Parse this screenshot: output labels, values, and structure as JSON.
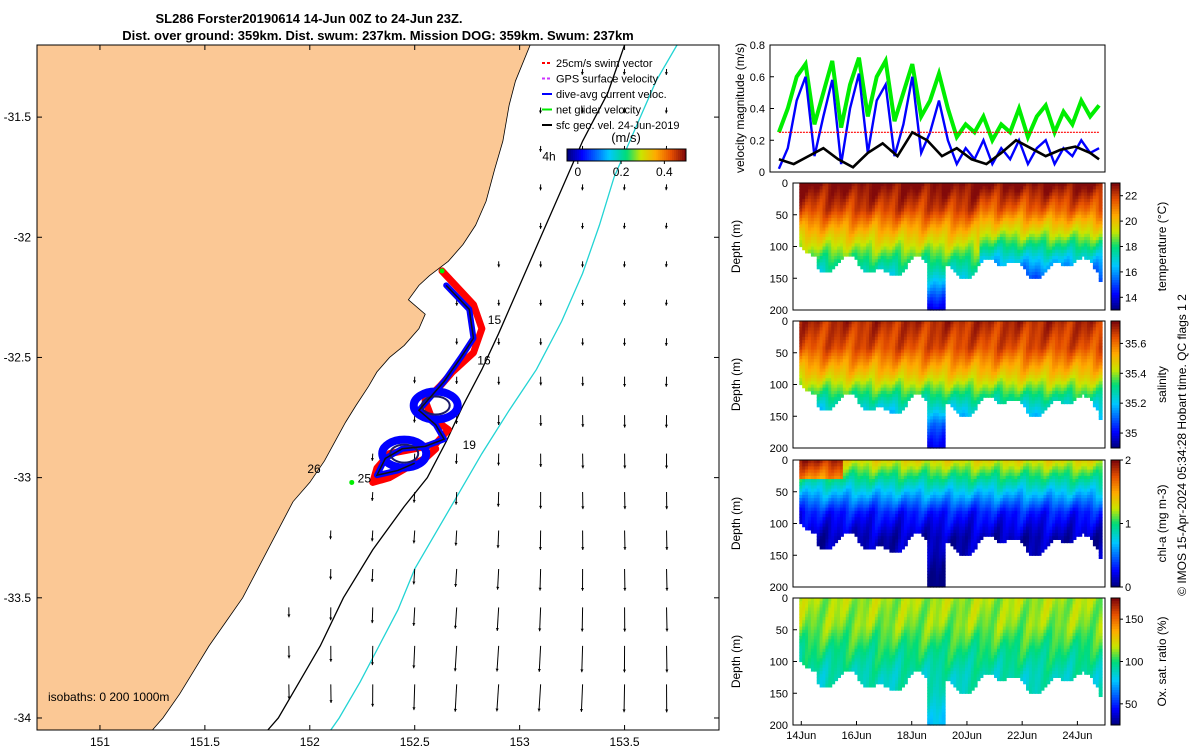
{
  "colors": {
    "land": "#fbc895",
    "swim": "#ff0000",
    "gps": "#cc33ff",
    "dive_avg": "#0000ff",
    "net_glider": "#00ee00",
    "sfc_geo": "#000000",
    "isobath_200": "#000000",
    "isobath_1000": "#22d4d4",
    "track_red": "#ff0000",
    "track_blue": "#0000ff"
  },
  "chart_data": [
    {
      "id": "map",
      "type": "scatter",
      "title_line1": "SL286 Forster20190614 14-Jun 00Z to 24-Jun 23Z.",
      "title_line2": "Dist. over ground: 359km. Dist. swum: 237km. Mission DOG: 359km. Swum: 237km",
      "xlim": [
        150.7,
        153.95
      ],
      "ylim": [
        -34.05,
        -31.2
      ],
      "xticks": [
        151,
        151.5,
        152,
        152.5,
        153,
        153.5
      ],
      "xtick_labels": [
        "151",
        "151.5",
        "152",
        "152.5",
        "153",
        "153.5"
      ],
      "yticks": [
        -31.5,
        -32,
        -32.5,
        -33,
        -33.5,
        -34
      ],
      "ytick_labels": [
        "-31.5",
        "-32",
        "-32.5",
        "-33",
        "-33.5",
        "-34"
      ],
      "coast": [
        [
          153.05,
          -31.2
        ],
        [
          152.98,
          -31.35
        ],
        [
          152.95,
          -31.45
        ],
        [
          152.92,
          -31.6
        ],
        [
          152.88,
          -31.72
        ],
        [
          152.84,
          -31.85
        ],
        [
          152.79,
          -31.95
        ],
        [
          152.73,
          -32.03
        ],
        [
          152.66,
          -32.1
        ],
        [
          152.57,
          -32.16
        ],
        [
          152.52,
          -32.2
        ],
        [
          152.47,
          -32.26
        ],
        [
          152.55,
          -32.32
        ],
        [
          152.52,
          -32.38
        ],
        [
          152.45,
          -32.45
        ],
        [
          152.38,
          -32.5
        ],
        [
          152.32,
          -32.56
        ],
        [
          152.28,
          -32.62
        ],
        [
          152.22,
          -32.7
        ],
        [
          152.17,
          -32.77
        ],
        [
          152.12,
          -32.85
        ],
        [
          152.07,
          -32.93
        ],
        [
          152.0,
          -33.02
        ],
        [
          151.92,
          -33.1
        ],
        [
          151.86,
          -33.2
        ],
        [
          151.8,
          -33.3
        ],
        [
          151.74,
          -33.4
        ],
        [
          151.68,
          -33.5
        ],
        [
          151.6,
          -33.6
        ],
        [
          151.52,
          -33.7
        ],
        [
          151.45,
          -33.8
        ],
        [
          151.38,
          -33.9
        ],
        [
          151.3,
          -34.0
        ],
        [
          151.25,
          -34.05
        ]
      ],
      "isobath_200": [
        [
          153.5,
          -31.2
        ],
        [
          153.42,
          -31.4
        ],
        [
          153.3,
          -31.6
        ],
        [
          153.2,
          -31.8
        ],
        [
          153.1,
          -32.0
        ],
        [
          153.0,
          -32.2
        ],
        [
          152.9,
          -32.4
        ],
        [
          152.82,
          -32.55
        ],
        [
          152.73,
          -32.7
        ],
        [
          152.65,
          -32.85
        ],
        [
          152.56,
          -33.0
        ],
        [
          152.45,
          -33.12
        ],
        [
          152.3,
          -33.3
        ],
        [
          152.16,
          -33.5
        ],
        [
          152.05,
          -33.7
        ],
        [
          151.95,
          -33.85
        ],
        [
          151.85,
          -34.0
        ],
        [
          151.8,
          -34.05
        ]
      ],
      "isobath_1000": [
        [
          153.75,
          -31.2
        ],
        [
          153.65,
          -31.35
        ],
        [
          153.55,
          -31.55
        ],
        [
          153.45,
          -31.75
        ],
        [
          153.38,
          -31.95
        ],
        [
          153.3,
          -32.15
        ],
        [
          153.2,
          -32.35
        ],
        [
          153.08,
          -32.55
        ],
        [
          152.95,
          -32.72
        ],
        [
          152.82,
          -32.9
        ],
        [
          152.72,
          -33.05
        ],
        [
          152.62,
          -33.2
        ],
        [
          152.5,
          -33.38
        ],
        [
          152.42,
          -33.55
        ],
        [
          152.33,
          -33.7
        ],
        [
          152.24,
          -33.85
        ],
        [
          152.14,
          -34.0
        ],
        [
          152.1,
          -34.05
        ]
      ],
      "track_red": [
        [
          152.63,
          -32.14
        ],
        [
          152.78,
          -32.28
        ],
        [
          152.82,
          -32.38
        ],
        [
          152.78,
          -32.48
        ],
        [
          152.68,
          -32.56
        ],
        [
          152.62,
          -32.62
        ],
        [
          152.55,
          -32.68
        ],
        [
          152.58,
          -32.75
        ],
        [
          152.66,
          -32.8
        ],
        [
          152.6,
          -32.86
        ],
        [
          152.5,
          -32.88
        ],
        [
          152.38,
          -32.9
        ],
        [
          152.32,
          -32.96
        ],
        [
          152.3,
          -33.02
        ],
        [
          152.38,
          -33.0
        ],
        [
          152.46,
          -32.96
        ],
        [
          152.55,
          -32.92
        ],
        [
          152.6,
          -32.88
        ]
      ],
      "track_blue": [
        [
          152.65,
          -32.2
        ],
        [
          152.76,
          -32.3
        ],
        [
          152.78,
          -32.42
        ],
        [
          152.72,
          -32.5
        ],
        [
          152.64,
          -32.6
        ],
        [
          152.58,
          -32.66
        ],
        [
          152.52,
          -32.72
        ],
        [
          152.6,
          -32.78
        ],
        [
          152.64,
          -32.84
        ],
        [
          152.55,
          -32.87
        ],
        [
          152.44,
          -32.88
        ],
        [
          152.36,
          -32.92
        ],
        [
          152.32,
          -32.99
        ],
        [
          152.42,
          -32.97
        ],
        [
          152.5,
          -32.94
        ]
      ],
      "loop_centers": [
        [
          152.6,
          -32.7
        ],
        [
          152.45,
          -32.9
        ]
      ],
      "day_labels": [
        {
          "text": "15",
          "lon": 152.88,
          "lat": -32.36
        },
        {
          "text": "16",
          "lon": 152.83,
          "lat": -32.53
        },
        {
          "text": "19",
          "lon": 152.76,
          "lat": -32.88
        },
        {
          "text": "26",
          "lon": 152.02,
          "lat": -32.98
        },
        {
          "text": "25",
          "lon": 152.26,
          "lat": -33.02
        },
        {
          "text": "4h",
          "lon": 153.14,
          "lat": -31.68
        }
      ],
      "legend": [
        {
          "label": "25cm/s swim vector",
          "color_key": "swim",
          "style": "dash"
        },
        {
          "label": "GPS surface velocity",
          "color_key": "gps",
          "style": "dash"
        },
        {
          "label": "dive-avg current veloc.",
          "color_key": "dive_avg",
          "style": "solid"
        },
        {
          "label": "net glider velocity",
          "color_key": "net_glider",
          "style": "solid"
        },
        {
          "label": "sfc geo. vel. 24-Jun-2019",
          "color_key": "sfc_geo",
          "style": "solid"
        }
      ],
      "colorbar_label": "(m/s)",
      "colorbar_ticks": [
        0,
        0.2,
        0.4
      ],
      "colorbar_tick_labels": [
        "0",
        "0.2",
        "0.4"
      ],
      "colorbar_range": [
        -0.05,
        0.5
      ],
      "isobath_note": "isobaths: 0   200   1000m"
    },
    {
      "id": "velocity",
      "type": "line",
      "ylabel": "velocity magnitude (m/s)",
      "ylim": [
        0,
        0.8
      ],
      "yticks": [
        0,
        0.2,
        0.4,
        0.6,
        0.8
      ],
      "ytick_labels": [
        "0",
        "0.2",
        "0.4",
        "0.6",
        "0.8"
      ],
      "xlim": [
        13.7,
        25.0
      ],
      "series": [
        {
          "name": "net glider velocity",
          "color_key": "net_glider",
          "x": [
            14.0,
            14.3,
            14.6,
            14.9,
            15.2,
            15.5,
            15.8,
            16.1,
            16.4,
            16.7,
            17.0,
            17.3,
            17.6,
            17.9,
            18.2,
            18.5,
            18.8,
            19.1,
            19.4,
            19.7,
            20.0,
            20.3,
            20.6,
            20.9,
            21.2,
            21.5,
            21.8,
            22.1,
            22.4,
            22.7,
            23.0,
            23.3,
            23.6,
            23.9,
            24.2,
            24.5,
            24.8
          ],
          "values": [
            0.25,
            0.4,
            0.6,
            0.68,
            0.3,
            0.5,
            0.7,
            0.28,
            0.55,
            0.72,
            0.35,
            0.6,
            0.7,
            0.32,
            0.5,
            0.68,
            0.35,
            0.45,
            0.62,
            0.4,
            0.22,
            0.3,
            0.25,
            0.35,
            0.2,
            0.3,
            0.25,
            0.4,
            0.22,
            0.35,
            0.42,
            0.25,
            0.38,
            0.3,
            0.45,
            0.35,
            0.42
          ]
        },
        {
          "name": "dive-avg current veloc.",
          "color_key": "dive_avg",
          "x": [
            14.0,
            14.3,
            14.6,
            14.9,
            15.2,
            15.5,
            15.8,
            16.1,
            16.4,
            16.7,
            17.0,
            17.3,
            17.6,
            17.9,
            18.2,
            18.5,
            18.8,
            19.1,
            19.4,
            19.7,
            20.0,
            20.3,
            20.6,
            20.9,
            21.2,
            21.5,
            21.8,
            22.1,
            22.4,
            22.7,
            23.0,
            23.3,
            23.6,
            23.9,
            24.2,
            24.5,
            24.8
          ],
          "values": [
            0.02,
            0.15,
            0.45,
            0.6,
            0.1,
            0.35,
            0.58,
            0.05,
            0.4,
            0.62,
            0.12,
            0.45,
            0.55,
            0.1,
            0.3,
            0.6,
            0.12,
            0.25,
            0.45,
            0.2,
            0.05,
            0.15,
            0.08,
            0.2,
            0.05,
            0.15,
            0.08,
            0.2,
            0.05,
            0.15,
            0.2,
            0.05,
            0.15,
            0.1,
            0.2,
            0.12,
            0.15
          ]
        },
        {
          "name": "25cm/s swim vector",
          "color_key": "swim",
          "x": [
            14.0,
            24.8
          ],
          "values": [
            0.25,
            0.25
          ]
        },
        {
          "name": "sfc geo. vel. 24-Jun-2019",
          "color_key": "sfc_geo",
          "x": [
            14.0,
            14.5,
            15.0,
            15.5,
            16.0,
            16.5,
            17.0,
            17.5,
            18.0,
            18.5,
            19.0,
            19.5,
            20.0,
            20.5,
            21.0,
            21.5,
            22.0,
            22.5,
            23.0,
            23.5,
            24.0,
            24.5,
            24.8
          ],
          "values": [
            0.08,
            0.05,
            0.1,
            0.15,
            0.08,
            0.03,
            0.12,
            0.18,
            0.1,
            0.25,
            0.2,
            0.1,
            0.15,
            0.08,
            0.05,
            0.12,
            0.2,
            0.15,
            0.1,
            0.14,
            0.16,
            0.12,
            0.08
          ]
        }
      ]
    },
    {
      "id": "temperature",
      "type": "heatmap",
      "ylabel": "Depth (m)",
      "cbar_label": "temperature (°C)",
      "cbar_ticks": [
        14,
        16,
        18,
        20,
        22
      ],
      "cbar_tick_labels": [
        "14",
        "16",
        "18",
        "20",
        "22"
      ],
      "crange": [
        13,
        23
      ],
      "yticks": [
        0,
        50,
        100,
        150,
        200
      ],
      "ytick_labels": [
        "0",
        "50",
        "100",
        "150",
        "200"
      ],
      "profile": [
        23,
        22,
        20,
        18,
        16,
        14
      ]
    },
    {
      "id": "salinity",
      "type": "heatmap",
      "ylabel": "Depth (m)",
      "cbar_label": "salinity",
      "cbar_ticks": [
        35,
        35.2,
        35.4,
        35.6
      ],
      "cbar_tick_labels": [
        "35",
        "35.2",
        "35.4",
        "35.6"
      ],
      "crange": [
        34.9,
        35.75
      ],
      "yticks": [
        0,
        50,
        100,
        150,
        200
      ],
      "ytick_labels": [
        "0",
        "50",
        "100",
        "150",
        "200"
      ],
      "profile": [
        35.7,
        35.65,
        35.5,
        35.3,
        35.1,
        35.0
      ]
    },
    {
      "id": "chla",
      "type": "heatmap",
      "ylabel": "Depth (m)",
      "cbar_label": "chl-a (mg m-3)",
      "cbar_ticks": [
        0,
        1,
        2
      ],
      "cbar_tick_labels": [
        "0",
        "1",
        "2"
      ],
      "crange": [
        0,
        2
      ],
      "yticks": [
        0,
        50,
        100,
        150,
        200
      ],
      "ytick_labels": [
        "0",
        "50",
        "100",
        "150",
        "200"
      ],
      "profile": [
        1.3,
        0.8,
        0.3,
        0.1,
        0.05,
        0.02
      ]
    },
    {
      "id": "oxygen",
      "type": "heatmap",
      "ylabel": "Depth (m)",
      "cbar_label": "Ox. sat. ratio (%)",
      "cbar_ticks": [
        50,
        100,
        150
      ],
      "cbar_tick_labels": [
        "50",
        "100",
        "150"
      ],
      "crange": [
        25,
        175
      ],
      "yticks": [
        0,
        50,
        100,
        150,
        200
      ],
      "ytick_labels": [
        "0",
        "50",
        "100",
        "150",
        "200"
      ],
      "profile": [
        115,
        112,
        100,
        90,
        85,
        80
      ],
      "xticks": [
        14,
        16,
        18,
        20,
        22,
        24
      ],
      "xtick_labels": [
        "14Jun",
        "16Jun",
        "18Jun",
        "20Jun",
        "22Jun",
        "24Jun"
      ]
    }
  ],
  "footer": {
    "qc_note": "© IMOS 15-Apr-2024 05:34:28 Hobart time. QC flags 1  2"
  }
}
